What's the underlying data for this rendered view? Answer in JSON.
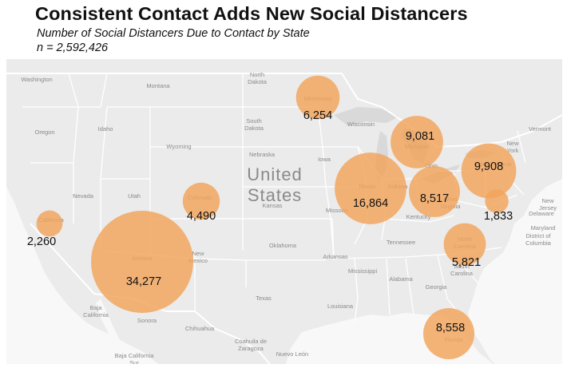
{
  "title": "Consistent Contact Adds New Social Distancers",
  "subtitle": "Number of Social Distancers Due to Contact by State",
  "n_label": "n = 2,592,426",
  "colors": {
    "bubble": "#F2A35A",
    "land": "#EBEBEB",
    "water": "#F8F8F8",
    "lakes": "#D9D9D9",
    "border": "#FFFFFF"
  },
  "country_label": [
    "United",
    "States"
  ],
  "place_labels": [
    "Washington",
    "Montana",
    "North Dakota",
    "Minnesota",
    "Wisconsin",
    "Vermont",
    "Oregon",
    "Idaho",
    "South Dakota",
    "Michigan",
    "New York",
    "Wyoming",
    "Iowa",
    "Pennsylvania",
    "Nevada",
    "Utah",
    "Nebraska",
    "Illinois",
    "Indiana",
    "Ohio",
    "California",
    "Colorado",
    "Kansas",
    "Missouri",
    "West Virginia",
    "Kentucky",
    "New Jersey",
    "Delaware",
    "Maryland",
    "District of Columbia",
    "Oklahoma",
    "Tennessee",
    "North Carolina",
    "Arizona",
    "New Mexico",
    "Arkansas",
    "Mississippi",
    "Alabama",
    "Georgia",
    "South Carolina",
    "Texas",
    "Louisiana",
    "Florida",
    "Baja California",
    "Sonora",
    "Chihuahua",
    "Coahuila de Zaragoza",
    "Nuevo León",
    "Baja California Sur"
  ],
  "map_data": {
    "type": "proportional-symbol-map",
    "region": "United States",
    "value_label": "Number of Social Distancers Due to Contact",
    "points": [
      {
        "state": "California",
        "value": 2260,
        "label": "2,260"
      },
      {
        "state": "Arizona",
        "value": 34277,
        "label": "34,277"
      },
      {
        "state": "Colorado",
        "value": 4490,
        "label": "4,490"
      },
      {
        "state": "Minnesota",
        "value": 6254,
        "label": "6,254"
      },
      {
        "state": "Illinois",
        "value": 16864,
        "label": "16,864"
      },
      {
        "state": "Michigan",
        "value": 9081,
        "label": "9,081"
      },
      {
        "state": "Ohio",
        "value": 8517,
        "label": "8,517"
      },
      {
        "state": "Pennsylvania",
        "value": 9908,
        "label": "9,908"
      },
      {
        "state": "Maryland",
        "value": 1833,
        "label": "1,833"
      },
      {
        "state": "North Carolina",
        "value": 5821,
        "label": "5,821"
      },
      {
        "state": "Florida",
        "value": 8558,
        "label": "8,558"
      }
    ]
  }
}
